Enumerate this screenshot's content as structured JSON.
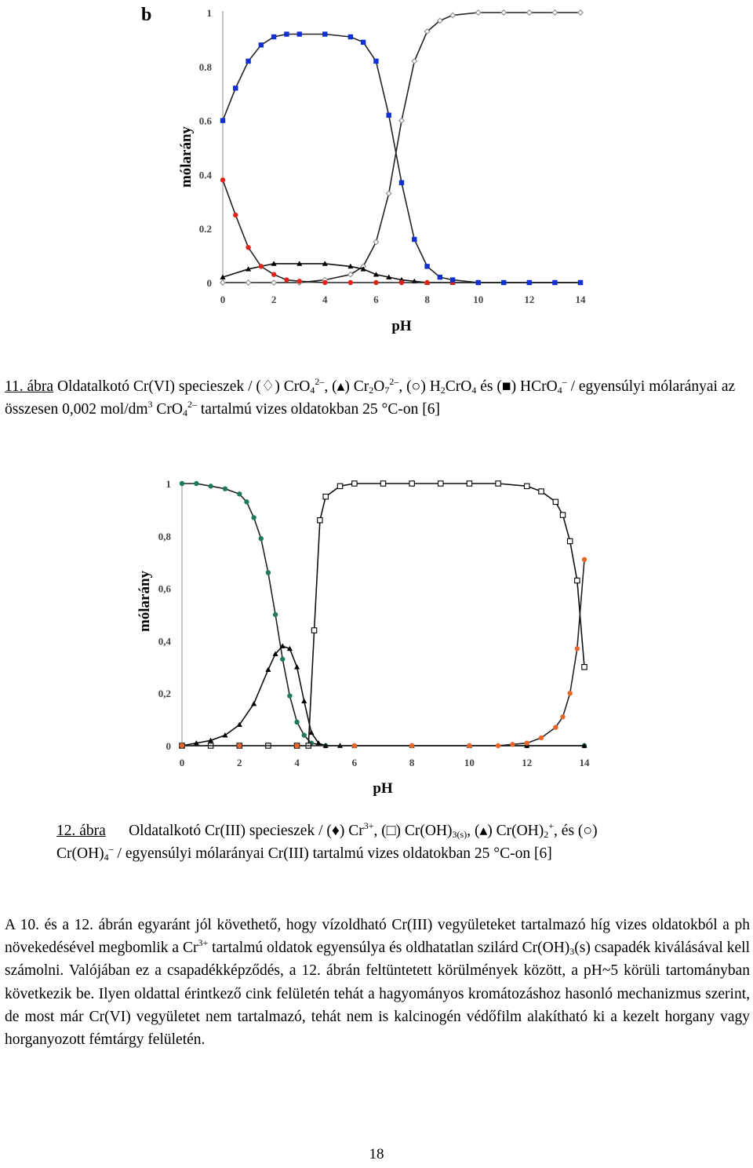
{
  "figure1": {
    "panel_label": "b",
    "caption": {
      "number": "11. ábra",
      "text_a": " Oldatalkotó Cr(VI) specieszek / (♢) CrO",
      "text_b": ", (▴) Cr",
      "text_c": "O",
      "text_d": ", (○) H",
      "text_e": "CrO",
      "text_f": " és (■) HCrO",
      "text_g": " / egyensúlyi mólarányai az összesen 0,002 mol/dm",
      "text_h": " CrO",
      "text_i": " tartalmú vizes oldatokban 25 °C-on [6]",
      "sub4": "4",
      "sup2m": "2–",
      "sub2": "2",
      "sub7": "7",
      "supm": "–",
      "sup3": "3"
    }
  },
  "figure2": {
    "caption": {
      "number": "12. ábra",
      "text_a": "Oldatalkotó Cr(III) specieszek / (♦) Cr",
      "text_b": ", (□) Cr(OH)",
      "text_c": ", (▴) Cr(OH)",
      "text_d": ", és (○)",
      "text_e": "Cr(OH)",
      "text_f": " / egyensúlyi mólarányai Cr(III) tartalmú vizes oldatokban 25 °C-on [6]",
      "sup3p": "3+",
      "sub3s": "3(s)",
      "sub2": "2",
      "supp": "+",
      "sub4": "4",
      "supm": "–"
    }
  },
  "paragraph": {
    "p1": "A 10. és a 12. ábrán egyaránt jól követhető, hogy vízoldható Cr(III) vegyületeket tartalmazó híg vizes oldatokból a ph növekedésével megbomlik a Cr",
    "sup": "3+",
    "p2": " tartalmú oldatok egyensúlya és oldhatatlan szilárd Cr(OH)",
    "sub": "3",
    "p3": "(s) csapadék kiválásával kell számolni. Valójában ez a csapadékképződés, a 12. ábrán feltüntetett körülmények között, a pH~5 körüli tartományban következik be. Ilyen oldattal érintkező cink felületén tehát a hagyományos kromátozáshoz hasonló mechanizmus szerint, de most már Cr(VI) vegyületet nem tartalmazó, tehát nem is kalcinogén védőfilm alakítható ki a kezelt horgany vagy horganyozott fémtárgy felületén."
  },
  "page_number": "18",
  "chart_data": [
    {
      "type": "scatter",
      "panel_label": "b",
      "xlabel": "pH",
      "ylabel": "mólarány",
      "xlim": [
        0,
        14
      ],
      "ylim": [
        0,
        1
      ],
      "xticks": [
        "0",
        "2",
        "4",
        "6",
        "8",
        "10",
        "12",
        "14"
      ],
      "yticks": [
        "0",
        "0.2",
        "0.4",
        "0.6",
        "0.8",
        "1"
      ],
      "grid": false,
      "series": [
        {
          "name": "CrO4 2–",
          "marker": "open-diamond",
          "color": "#8a8a8a",
          "x": [
            0,
            1,
            2,
            3,
            4,
            5,
            5.5,
            6,
            6.5,
            7,
            7.5,
            8,
            8.5,
            9,
            10,
            11,
            12,
            13,
            14
          ],
          "y": [
            0,
            0,
            0,
            0,
            0.01,
            0.03,
            0.06,
            0.15,
            0.33,
            0.6,
            0.82,
            0.93,
            0.97,
            0.99,
            1,
            1,
            1,
            1,
            1
          ]
        },
        {
          "name": "Cr2O7 2–",
          "marker": "filled-triangle",
          "color": "#000000",
          "x": [
            0,
            1,
            2,
            3,
            4,
            5,
            5.5,
            6,
            6.5,
            7,
            7.5,
            8,
            9,
            10,
            11,
            12,
            13,
            14
          ],
          "y": [
            0.02,
            0.05,
            0.07,
            0.07,
            0.07,
            0.06,
            0.05,
            0.03,
            0.02,
            0.01,
            0.005,
            0,
            0,
            0,
            0,
            0,
            0,
            0
          ]
        },
        {
          "name": "H2CrO4",
          "marker": "filled-circle",
          "color": "#e2231a",
          "x": [
            0,
            0.5,
            1,
            1.5,
            2,
            2.5,
            3,
            4,
            5,
            6,
            7,
            8,
            9,
            10,
            11,
            12,
            13,
            14
          ],
          "y": [
            0.38,
            0.25,
            0.13,
            0.06,
            0.03,
            0.01,
            0.005,
            0,
            0,
            0,
            0,
            0,
            0,
            0,
            0,
            0,
            0,
            0
          ]
        },
        {
          "name": "HCrO4 –",
          "marker": "filled-square",
          "color": "#1030d0",
          "x": [
            0,
            0.5,
            1,
            1.5,
            2,
            2.5,
            3,
            4,
            5,
            5.5,
            6,
            6.5,
            7,
            7.5,
            8,
            8.5,
            9,
            10,
            11,
            12,
            13,
            14
          ],
          "y": [
            0.6,
            0.72,
            0.82,
            0.88,
            0.91,
            0.92,
            0.92,
            0.92,
            0.91,
            0.89,
            0.82,
            0.62,
            0.37,
            0.16,
            0.06,
            0.02,
            0.01,
            0,
            0,
            0,
            0,
            0
          ]
        }
      ]
    },
    {
      "type": "scatter",
      "xlabel": "pH",
      "ylabel": "mólarány",
      "xlim": [
        0,
        14
      ],
      "ylim": [
        0,
        1
      ],
      "xticks": [
        "0",
        "2",
        "4",
        "6",
        "8",
        "10",
        "12",
        "14"
      ],
      "yticks": [
        "0",
        "0,2",
        "0,4",
        "0,6",
        "0,8",
        "1"
      ],
      "grid": false,
      "series": [
        {
          "name": "Cr3+",
          "marker": "filled-circle",
          "color": "#1f7a5c",
          "x": [
            0,
            0.5,
            1,
            1.5,
            2,
            2.25,
            2.5,
            2.75,
            3,
            3.25,
            3.5,
            3.75,
            4,
            4.25,
            4.5,
            5,
            6,
            8,
            10,
            12,
            14
          ],
          "y": [
            1,
            1,
            0.99,
            0.98,
            0.96,
            0.93,
            0.87,
            0.79,
            0.66,
            0.5,
            0.33,
            0.19,
            0.09,
            0.04,
            0.01,
            0,
            0,
            0,
            0,
            0,
            0
          ]
        },
        {
          "name": "Cr(OH)3(s)",
          "marker": "open-square",
          "color": "#000000",
          "x": [
            0,
            1,
            2,
            3,
            4,
            4.4,
            4.6,
            4.8,
            5,
            5.5,
            6,
            7,
            8,
            9,
            10,
            11,
            12,
            12.5,
            13,
            13.25,
            13.5,
            13.75,
            14
          ],
          "y": [
            0,
            0,
            0,
            0,
            0,
            0,
            0.44,
            0.86,
            0.95,
            0.99,
            1,
            1,
            1,
            1,
            1,
            1,
            0.99,
            0.97,
            0.93,
            0.88,
            0.78,
            0.63,
            0.3
          ]
        },
        {
          "name": "Cr(OH)2 +",
          "marker": "filled-triangle",
          "color": "#000000",
          "x": [
            0,
            0.5,
            1,
            1.5,
            2,
            2.5,
            3,
            3.25,
            3.5,
            3.75,
            4,
            4.25,
            4.5,
            4.75,
            5,
            5.5,
            6,
            8,
            10,
            12,
            14
          ],
          "y": [
            0,
            0.01,
            0.02,
            0.04,
            0.08,
            0.16,
            0.29,
            0.35,
            0.38,
            0.37,
            0.3,
            0.17,
            0.05,
            0.01,
            0,
            0,
            0,
            0,
            0,
            0,
            0
          ]
        },
        {
          "name": "Cr(OH)4 –",
          "marker": "filled-circle",
          "color": "#e8662a",
          "x": [
            0,
            2,
            4,
            6,
            8,
            10,
            11,
            11.5,
            12,
            12.5,
            13,
            13.25,
            13.5,
            13.75,
            14
          ],
          "y": [
            0,
            0,
            0,
            0,
            0,
            0,
            0,
            0.005,
            0.01,
            0.03,
            0.07,
            0.11,
            0.2,
            0.37,
            0.71
          ]
        }
      ]
    }
  ]
}
